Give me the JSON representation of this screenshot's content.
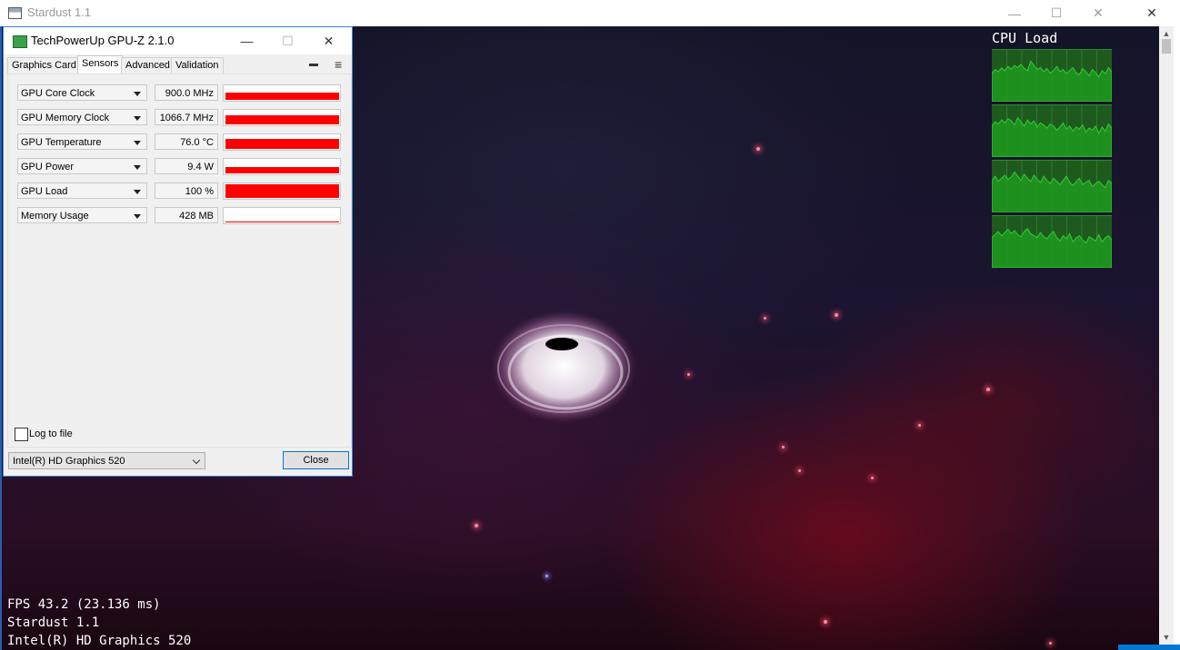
{
  "stardust": {
    "title": "Stardust 1.1",
    "window_buttons": {
      "minimize": "—",
      "maximize": "☐",
      "close": "✕"
    },
    "outer_close": "✕",
    "hud": {
      "fps": "FPS 43.2 (23.136 ms)",
      "app": "Stardust 1.1",
      "device": "Intel(R) HD Graphics 520"
    },
    "cpu_load": {
      "title": "CPU Load",
      "cores": [
        [
          0.55,
          0.62,
          0.58,
          0.65,
          0.6,
          0.68,
          0.63,
          0.7,
          0.66,
          0.72,
          0.64,
          0.6,
          0.78,
          0.7,
          0.62,
          0.66,
          0.58,
          0.64,
          0.55,
          0.6,
          0.68,
          0.58,
          0.62,
          0.54,
          0.6,
          0.66,
          0.56,
          0.52,
          0.64,
          0.58,
          0.5,
          0.62,
          0.56,
          0.48,
          0.6,
          0.54,
          0.66,
          0.58
        ],
        [
          0.6,
          0.68,
          0.64,
          0.72,
          0.66,
          0.74,
          0.7,
          0.62,
          0.76,
          0.68,
          0.6,
          0.72,
          0.64,
          0.7,
          0.58,
          0.66,
          0.62,
          0.56,
          0.64,
          0.6,
          0.52,
          0.58,
          0.66,
          0.54,
          0.6,
          0.5,
          0.58,
          0.54,
          0.62,
          0.48,
          0.56,
          0.52,
          0.6,
          0.46,
          0.58,
          0.5,
          0.64,
          0.56
        ],
        [
          0.62,
          0.7,
          0.6,
          0.66,
          0.72,
          0.64,
          0.68,
          0.78,
          0.7,
          0.62,
          0.74,
          0.66,
          0.6,
          0.72,
          0.64,
          0.58,
          0.7,
          0.62,
          0.56,
          0.66,
          0.6,
          0.54,
          0.62,
          0.7,
          0.58,
          0.52,
          0.6,
          0.66,
          0.54,
          0.58,
          0.62,
          0.5,
          0.56,
          0.6,
          0.54,
          0.48,
          0.62,
          0.56
        ],
        [
          0.58,
          0.64,
          0.7,
          0.62,
          0.68,
          0.74,
          0.66,
          0.72,
          0.64,
          0.6,
          0.7,
          0.76,
          0.66,
          0.62,
          0.58,
          0.68,
          0.6,
          0.56,
          0.64,
          0.7,
          0.58,
          0.52,
          0.62,
          0.56,
          0.66,
          0.5,
          0.58,
          0.62,
          0.54,
          0.48,
          0.6,
          0.56,
          0.52,
          0.64,
          0.5,
          0.58,
          0.62,
          0.54
        ]
      ]
    }
  },
  "gpuz": {
    "title": "TechPowerUp GPU-Z 2.1.0",
    "window_buttons": {
      "minimize": "—",
      "maximize": "☐",
      "close": "✕"
    },
    "tabs": [
      {
        "label": "Graphics Card"
      },
      {
        "label": "Sensors"
      },
      {
        "label": "Advanced"
      },
      {
        "label": "Validation"
      }
    ],
    "active_tab": "Sensors",
    "tab_tools": {
      "camera": "▬",
      "menu": "≡"
    },
    "sensors": [
      {
        "name": "GPU Core Clock",
        "value": "900.0 MHz",
        "level": 0.55
      },
      {
        "name": "GPU Memory Clock",
        "value": "1066.7 MHz",
        "level": 0.65
      },
      {
        "name": "GPU Temperature",
        "value": "76.0 °C",
        "level": 0.7
      },
      {
        "name": "GPU Power",
        "value": "9.4 W",
        "level": 0.45
      },
      {
        "name": "GPU Load",
        "value": "100 %",
        "level": 1.0
      },
      {
        "name": "Memory Usage",
        "value": "428 MB",
        "level": 0.05
      }
    ],
    "log_to_file": {
      "label": "Log to file",
      "checked": false
    },
    "device_select": {
      "value": "Intel(R) HD Graphics 520"
    },
    "close_button": "Close",
    "colors": {
      "graph_fill": "#ff0000",
      "cpu_graph_line": "#33cc33",
      "cpu_graph_bg": "#1e5a1e"
    }
  }
}
